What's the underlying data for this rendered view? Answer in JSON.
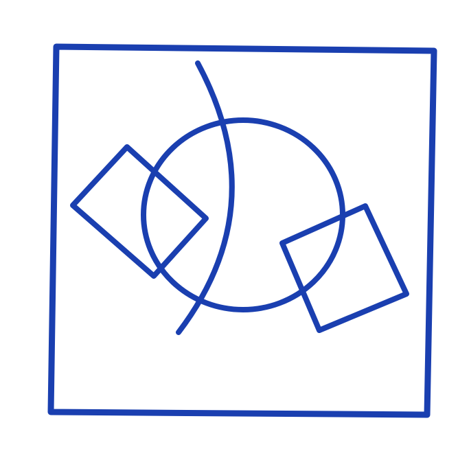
{
  "figure": {
    "type": "geometric-line-drawing",
    "colors": {
      "background": "#ffffff",
      "stroke": "#1a3fb0"
    },
    "shapes": [
      "outer-square",
      "circle",
      "left-tilted-square",
      "right-tilted-square",
      "arc-curve"
    ]
  }
}
